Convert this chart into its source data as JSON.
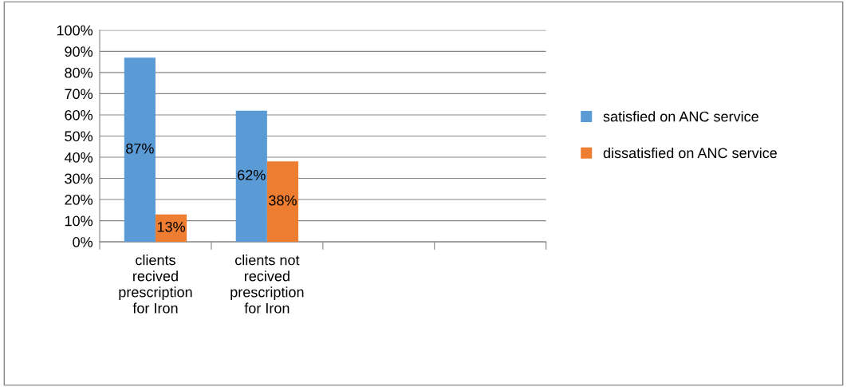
{
  "chart_data": {
    "type": "bar",
    "categories": [
      "clients recived prescription for Iron",
      "clients not recived prescription for Iron",
      null,
      null
    ],
    "series": [
      {
        "name": "satisfied on ANC service",
        "color": "#5b9bd5",
        "values": [
          87,
          62,
          null,
          null
        ],
        "value_labels": [
          "87%",
          "62%",
          null,
          null
        ]
      },
      {
        "name": "dissatisfied on ANC service",
        "color": "#ed7d31",
        "values": [
          13,
          38,
          null,
          null
        ],
        "value_labels": [
          "13%",
          "38%",
          null,
          null
        ]
      }
    ],
    "ylim": [
      0,
      100
    ],
    "yticks": [
      {
        "value": 0,
        "label": "0%"
      },
      {
        "value": 10,
        "label": "10%"
      },
      {
        "value": 20,
        "label": "20%"
      },
      {
        "value": 30,
        "label": "30%"
      },
      {
        "value": 40,
        "label": "40%"
      },
      {
        "value": 50,
        "label": "50%"
      },
      {
        "value": 60,
        "label": "60%"
      },
      {
        "value": 70,
        "label": "70%"
      },
      {
        "value": 80,
        "label": "80%"
      },
      {
        "value": 90,
        "label": "90%"
      },
      {
        "value": 100,
        "label": "100%"
      }
    ],
    "grid": "y",
    "legend": "right"
  }
}
